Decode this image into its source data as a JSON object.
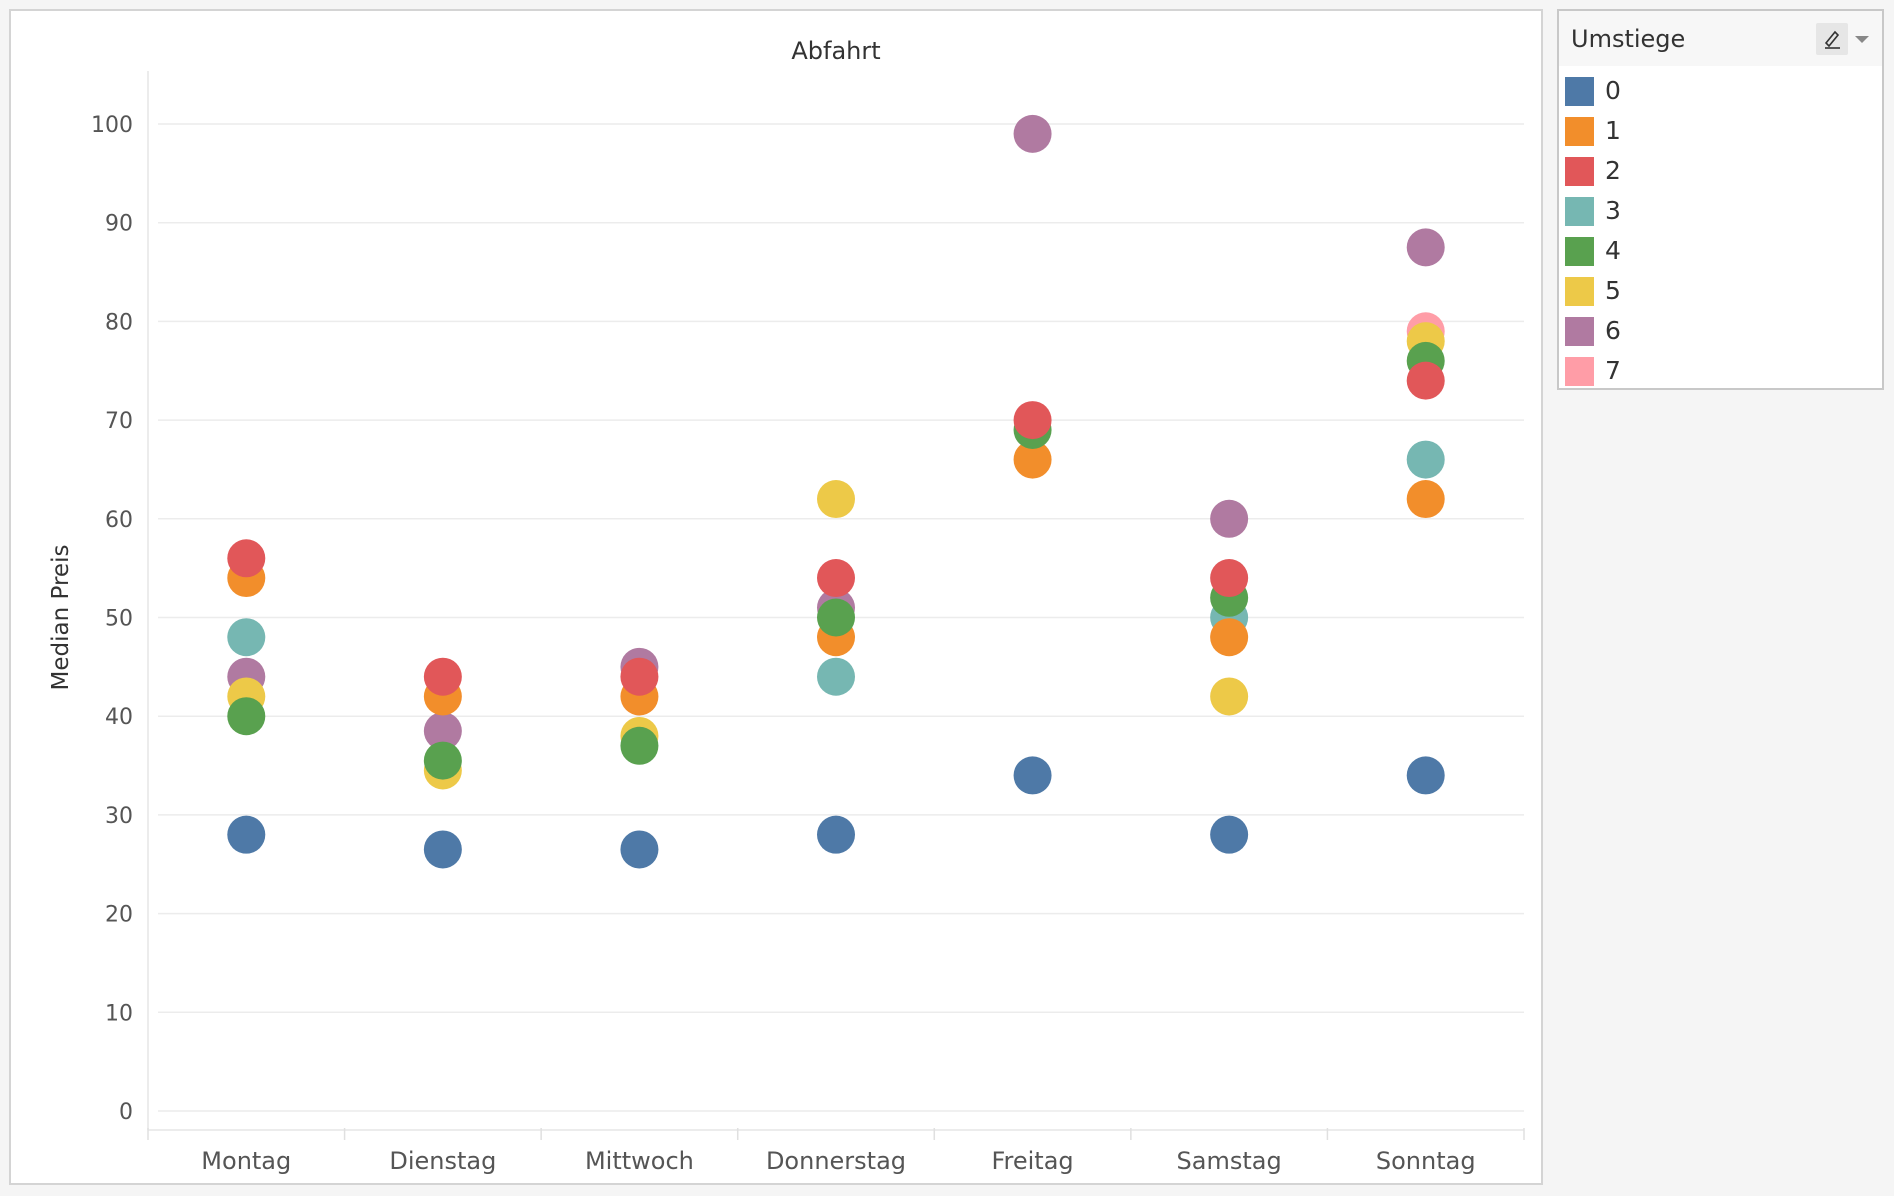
{
  "legend": {
    "title": "Umstiege",
    "tool_icon": "highlight-pen-icon",
    "dropdown_icon": "chevron-down-icon",
    "items": [
      {
        "label": "0",
        "color": "#4e79a7"
      },
      {
        "label": "1",
        "color": "#f28e2b"
      },
      {
        "label": "2",
        "color": "#e15759"
      },
      {
        "label": "3",
        "color": "#76b7b2"
      },
      {
        "label": "4",
        "color": "#59a14f"
      },
      {
        "label": "5",
        "color": "#edc948"
      },
      {
        "label": "6",
        "color": "#b07aa1"
      },
      {
        "label": "7",
        "color": "#ff9da7"
      }
    ]
  },
  "chart_data": {
    "type": "scatter",
    "title": "Abfahrt",
    "xlabel": "",
    "ylabel": "Median Preis",
    "ylim": [
      0,
      105
    ],
    "yticks": [
      0,
      10,
      20,
      30,
      40,
      50,
      60,
      70,
      80,
      90,
      100
    ],
    "grid": true,
    "legend_position": "right",
    "categories": [
      "Montag",
      "Dienstag",
      "Mittwoch",
      "Donnerstag",
      "Freitag",
      "Samstag",
      "Sonntag"
    ],
    "series": [
      {
        "name": "0",
        "color": "#4e79a7",
        "values": [
          28,
          26.5,
          26.5,
          28,
          34,
          28,
          34
        ]
      },
      {
        "name": "1",
        "color": "#f28e2b",
        "values": [
          54,
          42,
          42,
          48,
          66,
          48,
          62
        ]
      },
      {
        "name": "2",
        "color": "#e15759",
        "values": [
          56,
          44,
          44,
          54,
          70,
          54,
          74
        ]
      },
      {
        "name": "3",
        "color": "#76b7b2",
        "values": [
          48,
          null,
          null,
          44,
          null,
          50,
          66
        ]
      },
      {
        "name": "4",
        "color": "#59a14f",
        "values": [
          40,
          35.5,
          37,
          50,
          69,
          52,
          76
        ]
      },
      {
        "name": "5",
        "color": "#edc948",
        "values": [
          42,
          34.5,
          38,
          62,
          null,
          42,
          78
        ]
      },
      {
        "name": "6",
        "color": "#b07aa1",
        "values": [
          44,
          38.5,
          45,
          51,
          99,
          60,
          87.5
        ]
      },
      {
        "name": "7",
        "color": "#ff9da7",
        "values": [
          null,
          null,
          null,
          null,
          null,
          null,
          79
        ]
      }
    ]
  }
}
